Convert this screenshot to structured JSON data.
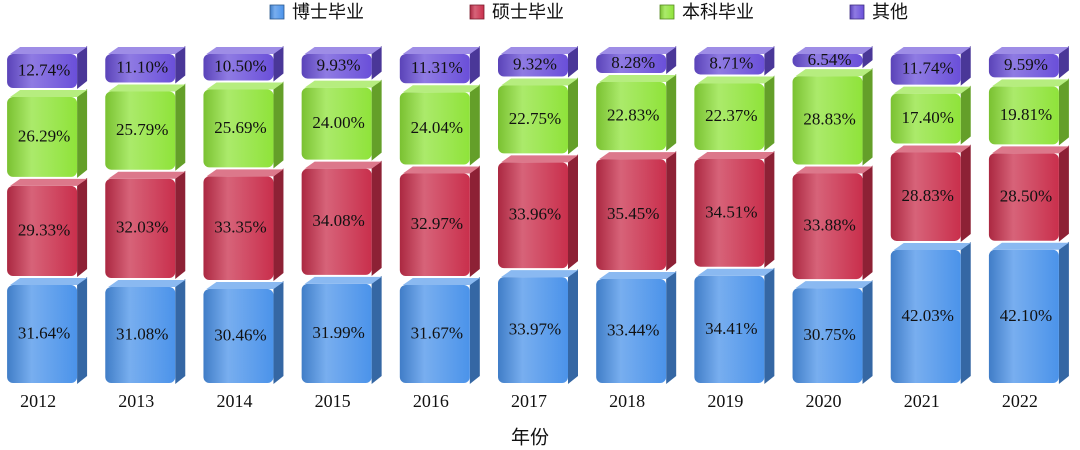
{
  "chart_data": {
    "type": "stacked-bar",
    "x_label": "年份",
    "categories": [
      "2012",
      "2013",
      "2014",
      "2015",
      "2016",
      "2017",
      "2018",
      "2019",
      "2020",
      "2021",
      "2022"
    ],
    "series": [
      {
        "name": "博士毕业",
        "color": "#4b93ea",
        "values": [
          31.64,
          31.08,
          30.46,
          31.99,
          31.67,
          33.97,
          33.44,
          34.41,
          30.75,
          42.03,
          42.1
        ],
        "value_labels": [
          "31.64%",
          "31.08%",
          "30.46%",
          "31.99%",
          "31.67%",
          "33.97%",
          "33.44%",
          "34.41%",
          "30.75%",
          "42.03%",
          "42.10%"
        ]
      },
      {
        "name": "硕士毕业",
        "color": "#c92f4c",
        "values": [
          29.33,
          32.03,
          33.35,
          34.08,
          32.97,
          33.96,
          35.45,
          34.51,
          33.88,
          28.83,
          28.5
        ],
        "value_labels": [
          "29.33%",
          "32.03%",
          "33.35%",
          "34.08%",
          "32.97%",
          "33.96%",
          "35.45%",
          "34.51%",
          "33.88%",
          "28.83%",
          "28.50%"
        ]
      },
      {
        "name": "本科毕业",
        "color": "#8fe33a",
        "values": [
          26.29,
          25.79,
          25.69,
          24.0,
          24.04,
          22.75,
          22.83,
          22.37,
          28.83,
          17.4,
          19.81
        ],
        "value_labels": [
          "26.29%",
          "25.79%",
          "25.69%",
          "24.00%",
          "24.04%",
          "22.75%",
          "22.83%",
          "22.37%",
          "28.83%",
          "17.40%",
          "19.81%"
        ]
      },
      {
        "name": "其他",
        "color": "#6a4fd9",
        "values": [
          12.74,
          11.1,
          10.5,
          9.93,
          11.31,
          9.32,
          8.28,
          8.71,
          6.54,
          11.74,
          9.59
        ],
        "value_labels": [
          "12.74%",
          "11.10%",
          "10.50%",
          "9.93%",
          "11.31%",
          "9.32%",
          "8.28%",
          "8.71%",
          "6.54%",
          "11.74%",
          "9.59%"
        ]
      }
    ]
  }
}
